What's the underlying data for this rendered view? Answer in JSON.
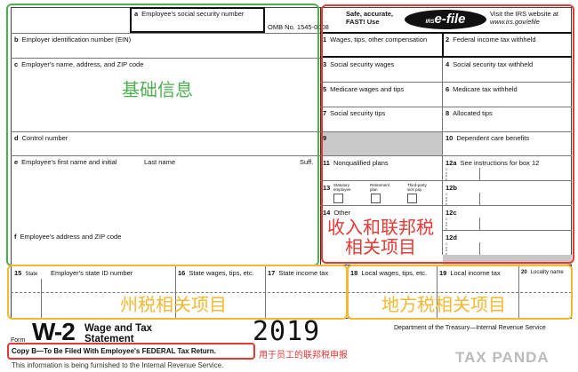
{
  "form": {
    "ssn": "a",
    "ssn_label": "Employee's social security number",
    "omb": "OMB No. 1545-0008",
    "b": "b",
    "b_label": "Employer identification number (EIN)",
    "c": "c",
    "c_label": "Employer's name, address, and ZIP code",
    "d": "d",
    "d_label": "Control number",
    "e": "e",
    "e_label": "Employee's first name and initial",
    "e_last": "Last name",
    "e_suff": "Suff.",
    "f": "f",
    "f_label": "Employee's address and ZIP code",
    "efile_left": "Safe, accurate,\nFAST! Use",
    "efile_logo": "e-file",
    "efile_irs": "IRS",
    "efile_right": "Visit the IRS website at",
    "efile_url": "www.irs.gov/efile",
    "boxes": [
      {
        "n": "1",
        "label": "Wages, tips, other compensation"
      },
      {
        "n": "2",
        "label": "Federal income tax withheld"
      },
      {
        "n": "3",
        "label": "Social security wages"
      },
      {
        "n": "4",
        "label": "Social security tax withheld"
      },
      {
        "n": "5",
        "label": "Medicare wages and tips"
      },
      {
        "n": "6",
        "label": "Medicare tax withheld"
      },
      {
        "n": "7",
        "label": "Social security tips"
      },
      {
        "n": "8",
        "label": "Allocated tips"
      },
      {
        "n": "9",
        "label": ""
      },
      {
        "n": "10",
        "label": "Dependent care benefits"
      },
      {
        "n": "11",
        "label": "Nonqualified plans"
      },
      {
        "n": "12a",
        "label": "See instructions for box 12"
      },
      {
        "n": "13",
        "label": ""
      },
      {
        "n": "12b",
        "label": ""
      },
      {
        "n": "14",
        "label": "Other"
      },
      {
        "n": "12c",
        "label": ""
      },
      {
        "n": "12d",
        "label": ""
      }
    ],
    "box13": [
      "Statutory employee",
      "Retirement plan",
      "Third-party sick pay"
    ],
    "code": "Code",
    "state": [
      {
        "n": "15",
        "label": "State"
      },
      {
        "n": "",
        "label": "Employer's state ID number"
      },
      {
        "n": "16",
        "label": "State wages, tips, etc."
      },
      {
        "n": "17",
        "label": "State income tax"
      },
      {
        "n": "18",
        "label": "Local wages, tips, etc."
      },
      {
        "n": "19",
        "label": "Local income tax"
      },
      {
        "n": "20",
        "label": "Locality name"
      }
    ],
    "form_word": "Form",
    "form_name": "W-2",
    "form_title": "Wage and Tax\nStatement",
    "year": "2019",
    "dept": "Department of the Treasury—Internal Revenue Service",
    "copy": "Copy B—To Be Filed With Employee's FEDERAL Tax Return.",
    "furnished": "This information is being furnished to the Internal Revenue Service."
  },
  "annotations": {
    "basic": "基础信息",
    "income1": "收入和联邦税",
    "income2": "相关项目",
    "state": "州税相关项目",
    "local": "地方税相关项目",
    "copy_note": "用于员工的联邦税申报",
    "colors": {
      "green": "#4caf50",
      "red": "#e53935",
      "orange": "#f5b830"
    }
  },
  "watermark": "TAX PANDA"
}
